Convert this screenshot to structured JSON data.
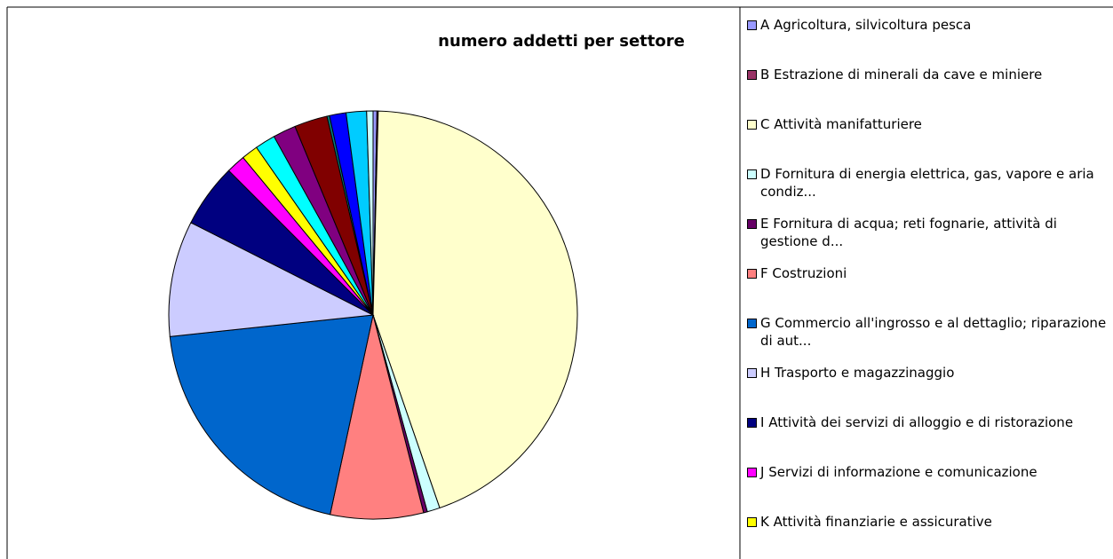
{
  "chart_data": {
    "type": "pie",
    "title": "numero addetti per settore",
    "categories": [
      "A Agricoltura, silvicoltura pesca",
      "B Estrazione di minerali da cave e miniere",
      "C Attività manifatturiere",
      "D Fornitura di energia elettrica, gas, vapore e aria condiz...",
      "E Fornitura di acqua; reti fognarie, attività di gestione d...",
      "F Costruzioni",
      "G Commercio all'ingrosso e al dettaglio; riparazione di aut...",
      "H Trasporto e magazzinaggio",
      "I Attività dei servizi di alloggio e di ristorazione",
      "J Servizi di informazione e comunicazione",
      "K Attività finanziarie e assicurative",
      null,
      null,
      null,
      null,
      null,
      null,
      null
    ],
    "values": [
      0.3,
      0.1,
      44,
      1,
      0.3,
      7.3,
      19.8,
      9.1,
      5,
      1.5,
      1.3,
      1.6,
      1.8,
      2.6,
      0.2,
      1.3,
      1.6,
      0.5
    ],
    "colors": [
      "#9999ff",
      "#993366",
      "#ffffcc",
      "#ccffff",
      "#660066",
      "#ff8080",
      "#0066cc",
      "#ccccff",
      "#000080",
      "#ff00ff",
      "#ffff00",
      "#00ffff",
      "#800080",
      "#800000",
      "#008080",
      "#0000ff",
      "#00ccff",
      "#ccffff"
    ],
    "legend": "right"
  }
}
